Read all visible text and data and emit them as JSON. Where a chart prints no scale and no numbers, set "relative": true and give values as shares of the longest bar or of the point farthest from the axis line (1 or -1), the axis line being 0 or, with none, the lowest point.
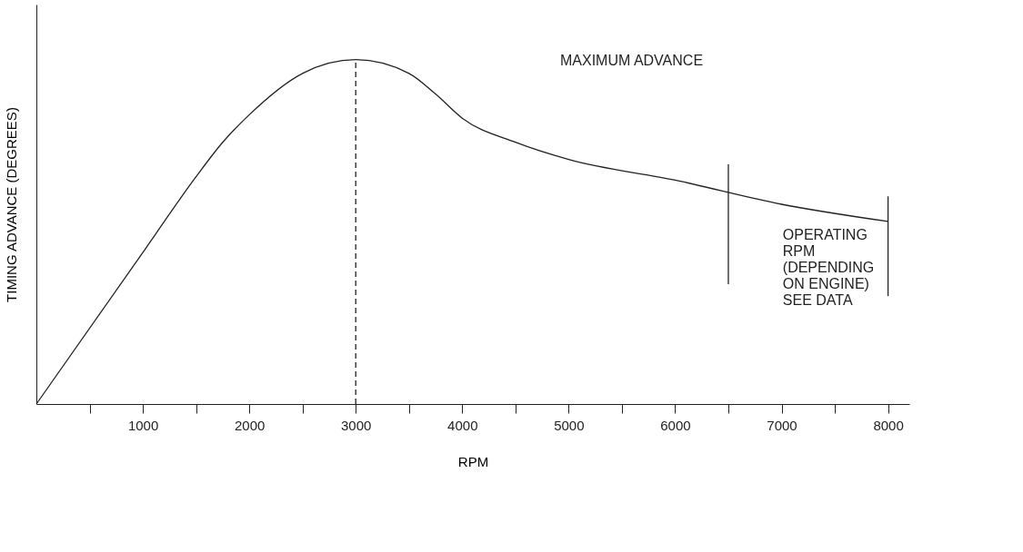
{
  "chart_data": {
    "type": "line",
    "relative": true,
    "xlabel": "RPM",
    "ylabel": "TIMING ADVANCE (DEGREES)",
    "x": [
      0,
      1000,
      1500,
      1750,
      2000,
      2500,
      3000,
      3500,
      3750,
      4000,
      4500,
      5000,
      6000,
      7000,
      8000
    ],
    "series": [
      {
        "color": "#222222",
        "values": [
          0,
          0.44,
          0.66,
          0.76,
          0.84,
          0.96,
          1,
          0.96,
          0.9,
          0.83,
          0.76,
          0.71,
          0.65,
          0.58,
          0.53
        ]
      }
    ],
    "xlim": [
      0,
      8200
    ],
    "xticks": [
      {
        "value": 500,
        "label": null
      },
      1000,
      {
        "value": 1500,
        "label": null
      },
      2000,
      {
        "value": 2500,
        "label": null
      },
      3000,
      {
        "value": 3500,
        "label": null
      },
      4000,
      {
        "value": 4500,
        "label": null
      },
      5000,
      {
        "value": 5500,
        "label": null
      },
      6000,
      {
        "value": 6500,
        "label": null
      },
      7000,
      {
        "value": 7500,
        "label": null
      },
      8000
    ],
    "ref_lines": [
      {
        "axis": "x",
        "value": 3000,
        "line_style": "dashed",
        "color": "#222222"
      },
      {
        "axis": "x",
        "value": 6500,
        "line_style": "solid",
        "color": "#222222"
      },
      {
        "axis": "x",
        "value": 8000,
        "line_style": "solid",
        "color": "#222222"
      }
    ],
    "annotations": [
      "MAXIMUM ADVANCE",
      "OPERATING\nRPM\n(DEPENDING\nON ENGINE)\nSEE DATA"
    ]
  }
}
